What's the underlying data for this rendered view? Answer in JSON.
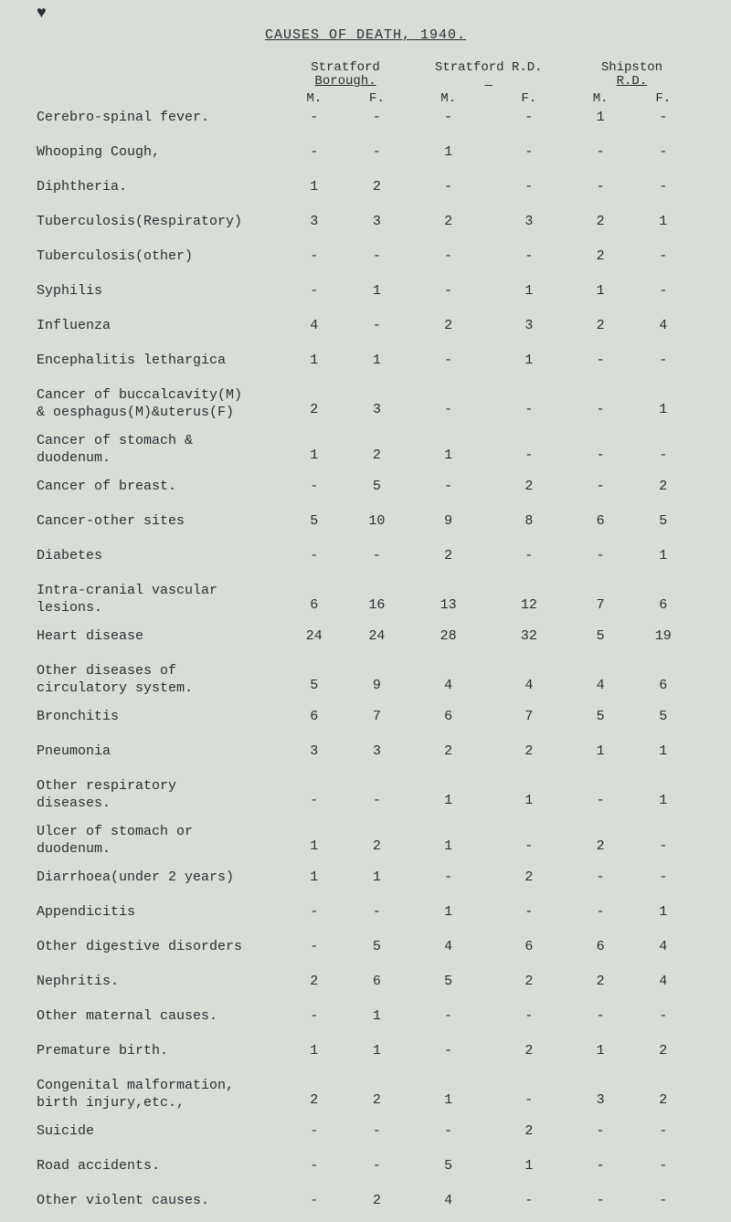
{
  "title": "CAUSES OF DEATH, 1940.",
  "header": {
    "group1_line1": "Stratford",
    "group1_line2": "Borough.",
    "group2_line1": "Stratford R.D.",
    "group3_line1": "Shipston",
    "group3_line2": "R.D.",
    "m": "M.",
    "f": "F."
  },
  "rows": [
    {
      "label": "Cerebro-spinal fever.",
      "multi": false,
      "v": [
        "-",
        "-",
        "-",
        "-",
        "1",
        "-"
      ]
    },
    {
      "label": "Whooping Cough,",
      "multi": false,
      "v": [
        "-",
        "-",
        "1",
        "-",
        "-",
        "-"
      ]
    },
    {
      "label": "Diphtheria.",
      "multi": false,
      "v": [
        "1",
        "2",
        "-",
        "-",
        "-",
        "-"
      ]
    },
    {
      "label": "Tuberculosis(Respiratory)",
      "multi": false,
      "v": [
        "3",
        "3",
        "2",
        "3",
        "2",
        "1"
      ]
    },
    {
      "label": "Tuberculosis(other)",
      "multi": false,
      "v": [
        "-",
        "-",
        "-",
        "-",
        "2",
        "-"
      ]
    },
    {
      "label": "Syphilis",
      "multi": false,
      "v": [
        "-",
        "1",
        "-",
        "1",
        "1",
        "-"
      ]
    },
    {
      "label": "Influenza",
      "multi": false,
      "v": [
        "4",
        "-",
        "2",
        "3",
        "2",
        "4"
      ]
    },
    {
      "label": "Encephalitis lethargica",
      "multi": false,
      "v": [
        "1",
        "1",
        "-",
        "1",
        "-",
        "-"
      ]
    },
    {
      "label": "Cancer of buccalcavity(M)\n& oesphagus(M)&uterus(F)",
      "multi": true,
      "v": [
        "2",
        "3",
        "-",
        "-",
        "-",
        "1"
      ]
    },
    {
      "label": "Cancer of stomach &\nduodenum.",
      "multi": true,
      "v": [
        "1",
        "2",
        "1",
        "-",
        "-",
        "-"
      ]
    },
    {
      "label": "Cancer of breast.",
      "multi": false,
      "v": [
        "-",
        "5",
        "-",
        "2",
        "-",
        "2"
      ]
    },
    {
      "label": "Cancer-other sites",
      "multi": false,
      "v": [
        "5",
        "10",
        "9",
        "8",
        "6",
        "5"
      ]
    },
    {
      "label": "Diabetes",
      "multi": false,
      "v": [
        "-",
        "-",
        "2",
        "-",
        "-",
        "1"
      ]
    },
    {
      "label": "Intra-cranial vascular\nlesions.",
      "multi": true,
      "v": [
        "6",
        "16",
        "13",
        "12",
        "7",
        "6"
      ]
    },
    {
      "label": "Heart disease",
      "multi": false,
      "v": [
        "24",
        "24",
        "28",
        "32",
        "5",
        "19"
      ]
    },
    {
      "label": "Other diseases of\ncirculatory system.",
      "multi": true,
      "v": [
        "5",
        "9",
        "4",
        "4",
        "4",
        "6"
      ]
    },
    {
      "label": "Bronchitis",
      "multi": false,
      "v": [
        "6",
        "7",
        "6",
        "7",
        "5",
        "5"
      ]
    },
    {
      "label": "Pneumonia",
      "multi": false,
      "v": [
        "3",
        "3",
        "2",
        "2",
        "1",
        "1"
      ]
    },
    {
      "label": "Other respiratory\ndiseases.",
      "multi": true,
      "v": [
        "-",
        "-",
        "1",
        "1",
        "-",
        "1"
      ]
    },
    {
      "label": "Ulcer of stomach or\nduodenum.",
      "multi": true,
      "v": [
        "1",
        "2",
        "1",
        "-",
        "2",
        "-"
      ]
    },
    {
      "label": "Diarrhoea(under 2 years)",
      "multi": false,
      "v": [
        "1",
        "1",
        "-",
        "2",
        "-",
        "-"
      ]
    },
    {
      "label": "Appendicitis",
      "multi": false,
      "v": [
        "-",
        "-",
        "1",
        "-",
        "-",
        "1"
      ]
    },
    {
      "label": "Other digestive disorders",
      "multi": false,
      "v": [
        "-",
        "5",
        "4",
        "6",
        "6",
        "4"
      ]
    },
    {
      "label": "Nephritis.",
      "multi": false,
      "v": [
        "2",
        "6",
        "5",
        "2",
        "2",
        "4"
      ]
    },
    {
      "label": "Other maternal causes.",
      "multi": false,
      "v": [
        "-",
        "1",
        "-",
        "-",
        "-",
        "-"
      ]
    },
    {
      "label": "Premature birth.",
      "multi": false,
      "v": [
        "1",
        "1",
        "-",
        "2",
        "1",
        "2"
      ]
    },
    {
      "label": "Congenital malformation,\nbirth injury,etc.,",
      "multi": true,
      "v": [
        "2",
        "2",
        "1",
        "-",
        "3",
        "2"
      ]
    },
    {
      "label": "Suicide",
      "multi": false,
      "v": [
        "-",
        "-",
        "-",
        "2",
        "-",
        "-"
      ]
    },
    {
      "label": "Road accidents.",
      "multi": false,
      "v": [
        "-",
        "-",
        "5",
        "1",
        "-",
        "-"
      ]
    },
    {
      "label": "Other violent causes.",
      "multi": false,
      "v": [
        "-",
        "2",
        "4",
        "-",
        "-",
        "-"
      ]
    }
  ]
}
